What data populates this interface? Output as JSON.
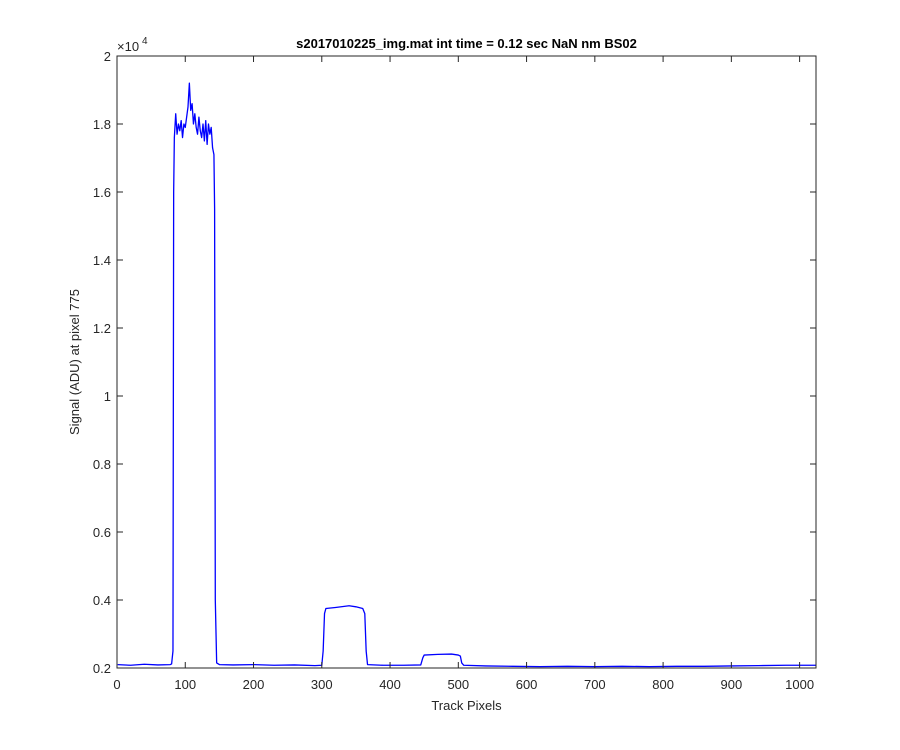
{
  "chart_data": {
    "type": "line",
    "title": "s2017010225_img.mat int time = 0.12 sec  NaN nm BS02",
    "xlabel": "Track Pixels",
    "ylabel": "Signal (ADU) at pixel 775",
    "xlim": [
      0,
      1024
    ],
    "ylim": [
      0.2,
      2
    ],
    "y_exponent_label": "×10",
    "y_exponent_power": "4",
    "y_scale": 10000,
    "xticks": [
      "0",
      "100",
      "200",
      "300",
      "400",
      "500",
      "600",
      "700",
      "800",
      "900",
      "1000"
    ],
    "yticks": [
      "0.2",
      "0.4",
      "0.6",
      "0.8",
      "1",
      "1.2",
      "1.4",
      "1.6",
      "1.8",
      "2"
    ],
    "grid": false,
    "line_color": "#0000ff",
    "series": [
      {
        "points": [
          [
            1,
            0.21
          ],
          [
            20,
            0.208
          ],
          [
            40,
            0.211
          ],
          [
            60,
            0.209
          ],
          [
            78,
            0.21
          ],
          [
            80,
            0.212
          ],
          [
            82,
            0.25
          ],
          [
            83,
            1.6
          ],
          [
            84,
            1.76
          ],
          [
            86,
            1.83
          ],
          [
            88,
            1.77
          ],
          [
            90,
            1.8
          ],
          [
            92,
            1.78
          ],
          [
            94,
            1.81
          ],
          [
            96,
            1.76
          ],
          [
            98,
            1.8
          ],
          [
            100,
            1.79
          ],
          [
            102,
            1.82
          ],
          [
            104,
            1.85
          ],
          [
            106,
            1.92
          ],
          [
            108,
            1.84
          ],
          [
            110,
            1.86
          ],
          [
            112,
            1.8
          ],
          [
            114,
            1.83
          ],
          [
            116,
            1.79
          ],
          [
            118,
            1.77
          ],
          [
            120,
            1.82
          ],
          [
            122,
            1.78
          ],
          [
            124,
            1.76
          ],
          [
            126,
            1.8
          ],
          [
            128,
            1.75
          ],
          [
            130,
            1.81
          ],
          [
            132,
            1.74
          ],
          [
            134,
            1.8
          ],
          [
            136,
            1.77
          ],
          [
            138,
            1.79
          ],
          [
            140,
            1.73
          ],
          [
            142,
            1.71
          ],
          [
            143,
            1.55
          ],
          [
            144,
            0.4
          ],
          [
            146,
            0.215
          ],
          [
            150,
            0.21
          ],
          [
            170,
            0.209
          ],
          [
            200,
            0.21
          ],
          [
            230,
            0.208
          ],
          [
            260,
            0.209
          ],
          [
            290,
            0.207
          ],
          [
            300,
            0.208
          ],
          [
            302,
            0.25
          ],
          [
            304,
            0.36
          ],
          [
            306,
            0.375
          ],
          [
            320,
            0.378
          ],
          [
            340,
            0.383
          ],
          [
            350,
            0.38
          ],
          [
            360,
            0.375
          ],
          [
            363,
            0.36
          ],
          [
            365,
            0.25
          ],
          [
            367,
            0.21
          ],
          [
            390,
            0.208
          ],
          [
            420,
            0.208
          ],
          [
            445,
            0.209
          ],
          [
            448,
            0.23
          ],
          [
            450,
            0.238
          ],
          [
            470,
            0.24
          ],
          [
            490,
            0.241
          ],
          [
            500,
            0.238
          ],
          [
            503,
            0.235
          ],
          [
            505,
            0.215
          ],
          [
            508,
            0.208
          ],
          [
            540,
            0.206
          ],
          [
            580,
            0.205
          ],
          [
            620,
            0.204
          ],
          [
            660,
            0.205
          ],
          [
            700,
            0.204
          ],
          [
            740,
            0.205
          ],
          [
            780,
            0.204
          ],
          [
            820,
            0.205
          ],
          [
            860,
            0.205
          ],
          [
            900,
            0.206
          ],
          [
            940,
            0.207
          ],
          [
            980,
            0.208
          ],
          [
            1024,
            0.208
          ]
        ]
      }
    ]
  }
}
